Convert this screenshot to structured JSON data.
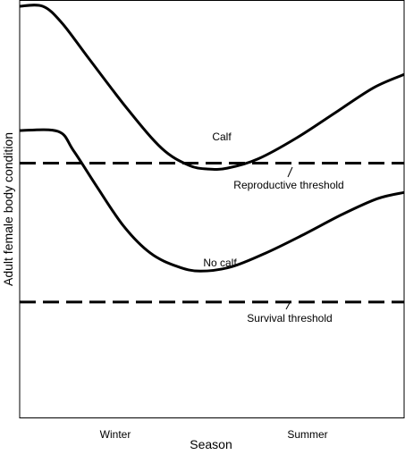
{
  "chart_data": {
    "type": "line",
    "xlabel": "Season",
    "ylabel": "Adult female body condition",
    "x_ticks": [
      "Winter",
      "Summer"
    ],
    "series": [
      {
        "name": "Calf",
        "points": [
          [
            0.0,
            0.985
          ],
          [
            0.06,
            0.985
          ],
          [
            0.11,
            0.945
          ],
          [
            0.18,
            0.86
          ],
          [
            0.28,
            0.74
          ],
          [
            0.37,
            0.645
          ],
          [
            0.44,
            0.605
          ],
          [
            0.49,
            0.596
          ],
          [
            0.54,
            0.598
          ],
          [
            0.62,
            0.62
          ],
          [
            0.72,
            0.67
          ],
          [
            0.82,
            0.73
          ],
          [
            0.92,
            0.79
          ],
          [
            1.0,
            0.822
          ]
        ]
      },
      {
        "name": "No calf",
        "points": [
          [
            0.0,
            0.688
          ],
          [
            0.1,
            0.686
          ],
          [
            0.14,
            0.64
          ],
          [
            0.2,
            0.555
          ],
          [
            0.27,
            0.46
          ],
          [
            0.34,
            0.395
          ],
          [
            0.41,
            0.363
          ],
          [
            0.47,
            0.352
          ],
          [
            0.55,
            0.362
          ],
          [
            0.64,
            0.395
          ],
          [
            0.74,
            0.44
          ],
          [
            0.84,
            0.488
          ],
          [
            0.93,
            0.525
          ],
          [
            1.0,
            0.54
          ]
        ]
      }
    ],
    "thresholds": [
      {
        "name": "Reproductive threshold",
        "y": 0.61
      },
      {
        "name": "Survival threshold",
        "y": 0.278
      }
    ],
    "ylim": [
      0,
      1
    ],
    "xlim": [
      0,
      1
    ],
    "grid": false,
    "legend": "none"
  }
}
